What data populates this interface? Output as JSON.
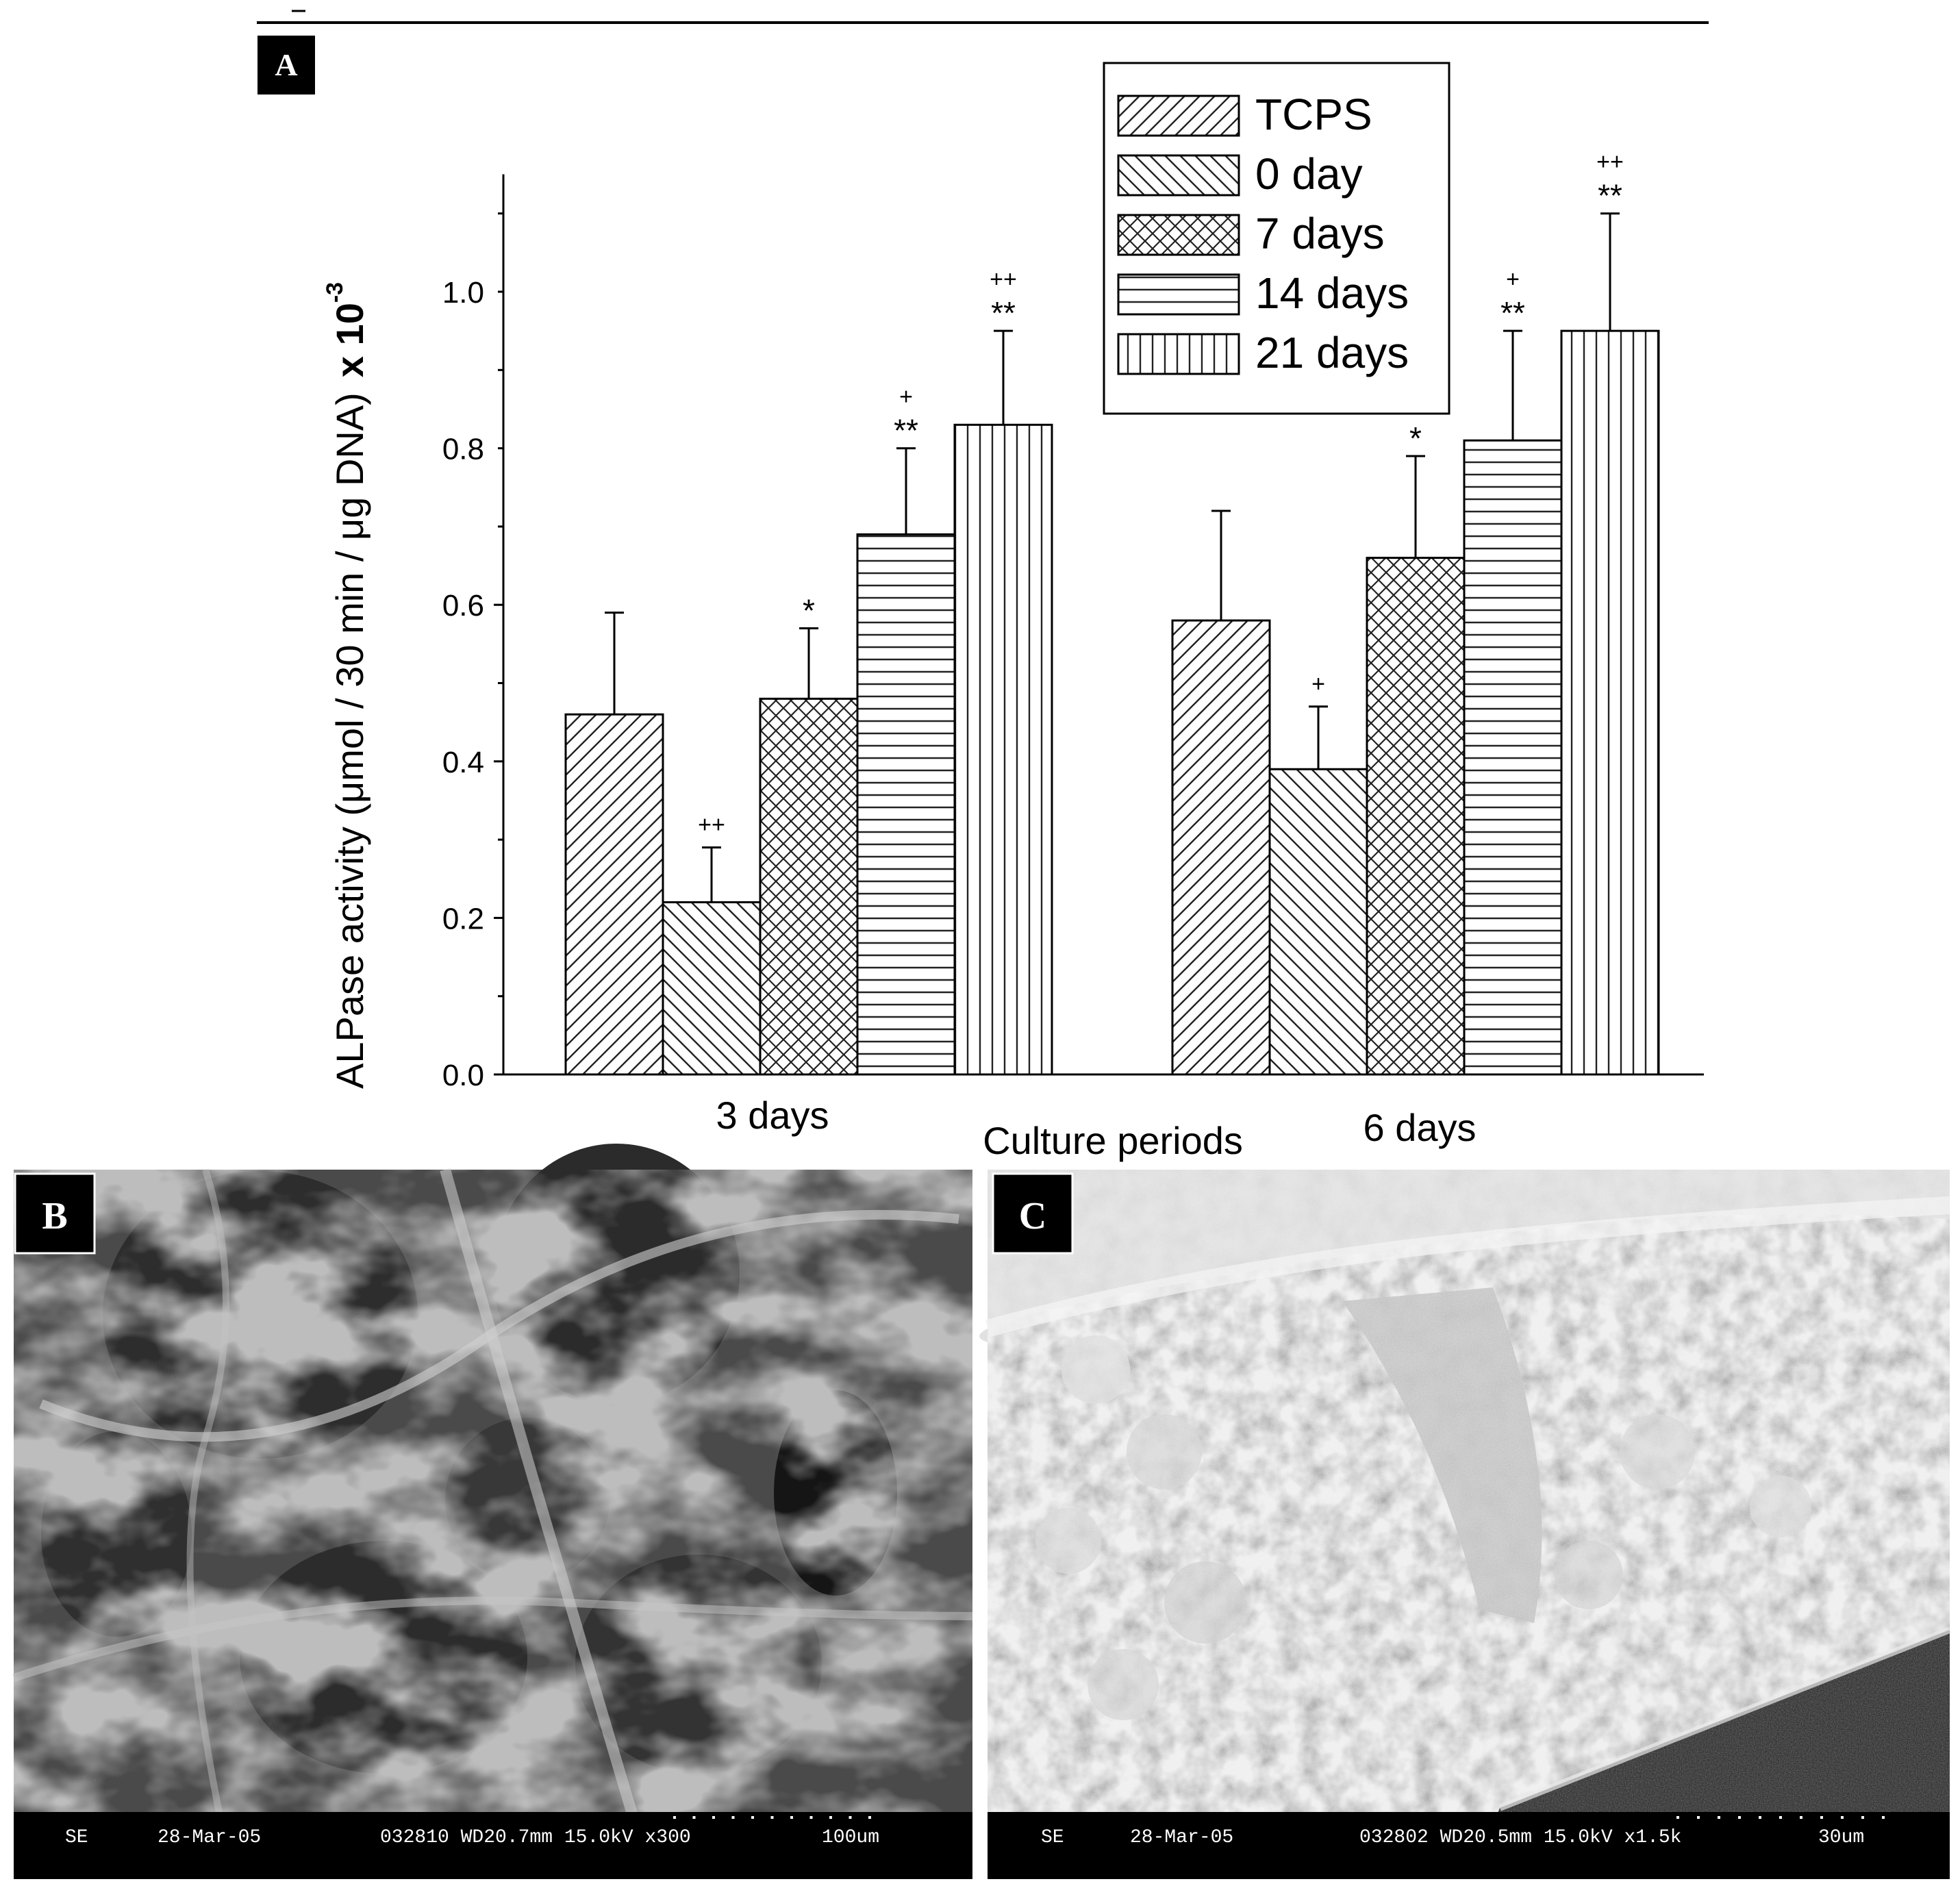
{
  "chart_data": {
    "type": "bar",
    "panel_label": "A",
    "categories": [
      "3 days",
      "6 days"
    ],
    "xlabel": "Culture periods",
    "ylabel": "ALPase activity (μmol / 30 min / μg DNA)",
    "ylabel_suffix": "x 10",
    "ylabel_exponent": "-3",
    "ylim": [
      0,
      1.15
    ],
    "yticks": [
      0.0,
      0.2,
      0.4,
      0.6,
      0.8,
      1.0
    ],
    "ytick_labels": [
      "0.0",
      "0.2",
      "0.4",
      "0.6",
      "0.8",
      "1.0"
    ],
    "legend_position": "top-right",
    "grid": false,
    "series": [
      {
        "name": "TCPS",
        "pattern": "diagonal-up",
        "values": [
          0.46,
          0.58
        ],
        "errors": [
          0.13,
          0.14
        ],
        "marks": [
          "",
          ""
        ],
        "marks_top": [
          "",
          ""
        ]
      },
      {
        "name": "0 day",
        "pattern": "diagonal-down",
        "values": [
          0.22,
          0.39
        ],
        "errors": [
          0.07,
          0.08
        ],
        "marks": [
          "++",
          "+"
        ],
        "marks_top": [
          "",
          ""
        ]
      },
      {
        "name": "7 days",
        "pattern": "crosshatch",
        "values": [
          0.48,
          0.66
        ],
        "errors": [
          0.09,
          0.13
        ],
        "marks": [
          "*",
          "*"
        ],
        "marks_top": [
          "",
          ""
        ]
      },
      {
        "name": "14 days",
        "pattern": "horizontal",
        "values": [
          0.69,
          0.81
        ],
        "errors": [
          0.11,
          0.14
        ],
        "marks": [
          "**",
          "**"
        ],
        "marks_top": [
          "+",
          "+"
        ]
      },
      {
        "name": "21 days",
        "pattern": "vertical",
        "values": [
          0.83,
          0.95
        ],
        "errors": [
          0.12,
          0.15
        ],
        "marks": [
          "**",
          "**"
        ],
        "marks_top": [
          "++",
          "++"
        ]
      }
    ]
  },
  "micrographs": [
    {
      "label": "B",
      "detector": "SE",
      "date": "28-Mar-05",
      "info": "032810 WD20.7mm 15.0kV x300",
      "scale": "100um"
    },
    {
      "label": "C",
      "detector": "SE",
      "date": "28-Mar-05",
      "info": "032802 WD20.5mm 15.0kV x1.5k",
      "scale": "30um"
    }
  ]
}
